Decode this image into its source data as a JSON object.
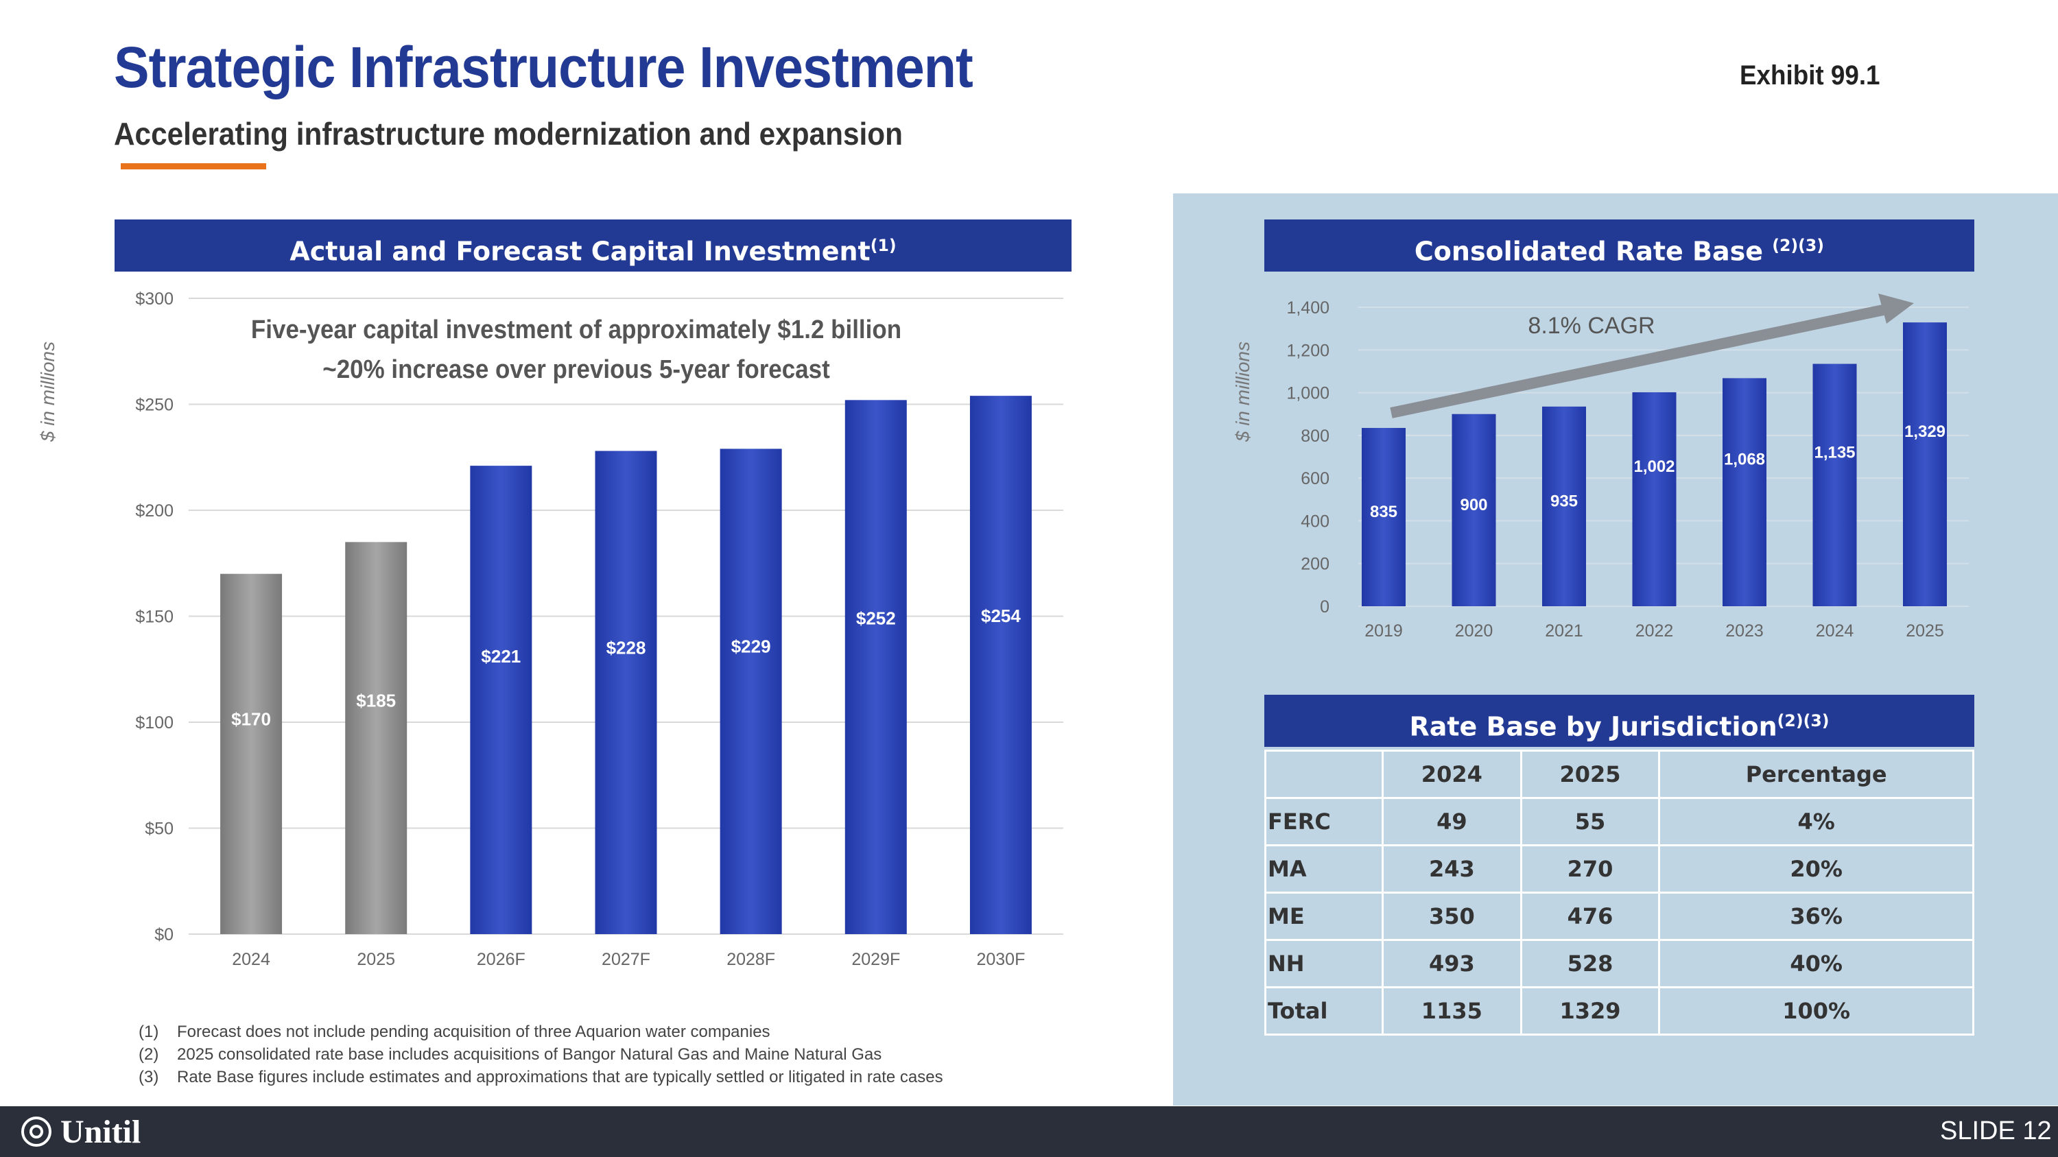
{
  "header": {
    "title": "Strategic Infrastructure Investment",
    "subtitle": "Accelerating infrastructure modernization and expansion",
    "exhibit": "Exhibit 99.1",
    "accent_color": "#e8731a"
  },
  "colors": {
    "title_blue": "#233a94",
    "bar_blue": "#2a44b8",
    "bar_gray": "#8c8c8c",
    "panel_bg": "#c0d5e4",
    "footer_bg": "#2b2f3a"
  },
  "capital_investment": {
    "banner": "Actual and Forecast Capital Investment",
    "banner_sup": "(1)",
    "annotation_line1": "Five-year capital investment of approximately $1.2 billion",
    "annotation_line2": "~20% increase over previous 5-year forecast"
  },
  "rate_base": {
    "banner": "Consolidated Rate Base ",
    "banner_sup": "(2)(3)",
    "cagr_label": "8.1% CAGR"
  },
  "chart_data": [
    {
      "type": "bar",
      "title": "Actual and Forecast Capital Investment(1)",
      "ylabel": "$ in millions",
      "categories": [
        "2024",
        "2025",
        "2026F",
        "2027F",
        "2028F",
        "2029F",
        "2030F"
      ],
      "values": [
        170,
        185,
        221,
        228,
        229,
        252,
        254
      ],
      "data_labels": [
        "$170",
        "$185",
        "$221",
        "$228",
        "$229",
        "$252",
        "$254"
      ],
      "bar_kind": [
        "actual",
        "actual",
        "forecast",
        "forecast",
        "forecast",
        "forecast",
        "forecast"
      ],
      "ylim": [
        0,
        300
      ],
      "yticks": [
        0,
        50,
        100,
        150,
        200,
        250,
        300
      ],
      "ytick_labels": [
        "$0",
        "$50",
        "$100",
        "$150",
        "$200",
        "$250",
        "$300"
      ],
      "grid": true
    },
    {
      "type": "bar",
      "title": "Consolidated Rate Base (2)(3)",
      "ylabel": "$ in millions",
      "categories": [
        "2019",
        "2020",
        "2021",
        "2022",
        "2023",
        "2024",
        "2025"
      ],
      "values": [
        835,
        900,
        935,
        1002,
        1068,
        1135,
        1329
      ],
      "data_labels": [
        "835",
        "900",
        "935",
        "1,002",
        "1,068",
        "1,135",
        "1,329"
      ],
      "ylim": [
        0,
        1400
      ],
      "yticks": [
        0,
        200,
        400,
        600,
        800,
        1000,
        1200,
        1400
      ],
      "ytick_labels": [
        "0",
        "200",
        "400",
        "600",
        "800",
        "1,000",
        "1,200",
        "1,400"
      ],
      "grid": true,
      "annotation": "8.1% CAGR"
    }
  ],
  "jurisdiction": {
    "banner": "Rate Base by Jurisdiction",
    "banner_sup": "(2)(3)",
    "columns": [
      "",
      "2024",
      "2025",
      "Percentage"
    ],
    "rows": [
      [
        "FERC",
        "49",
        "55",
        "4%"
      ],
      [
        "MA",
        "243",
        "270",
        "20%"
      ],
      [
        "ME",
        "350",
        "476",
        "36%"
      ],
      [
        "NH",
        "493",
        "528",
        "40%"
      ],
      [
        "Total",
        "1135",
        "1329",
        "100%"
      ]
    ]
  },
  "footnotes": [
    {
      "num": "(1)",
      "text": "Forecast does not include pending acquisition of three Aquarion water companies"
    },
    {
      "num": "(2)",
      "text": "2025 consolidated rate base includes acquisitions of Bangor Natural Gas and Maine Natural Gas"
    },
    {
      "num": "(3)",
      "text": "Rate Base figures include estimates and approximations that are typically settled or litigated in rate cases"
    }
  ],
  "footer": {
    "logo_text": "Unitil",
    "slide_number": "SLIDE 12"
  }
}
